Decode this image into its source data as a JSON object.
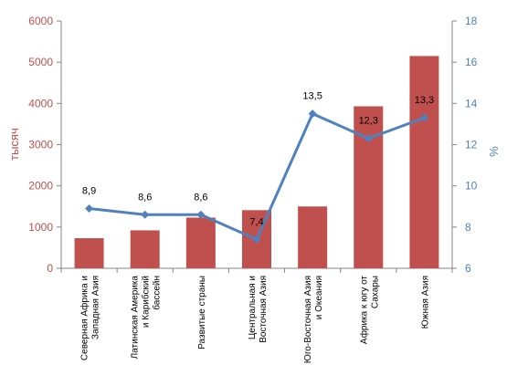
{
  "chart_data": {
    "type": "bar",
    "title": "",
    "categories": [
      [
        "Северная Африка и",
        "Западная Азия"
      ],
      [
        "Латинская Америка",
        "и Карибский",
        "бассейн"
      ],
      [
        "Развитые страны"
      ],
      [
        "Центральная и",
        "Восточная Азия"
      ],
      [
        "Юго-Восточная Азия",
        "и Океания"
      ],
      [
        "Африка к югу от",
        "Сахары"
      ],
      [
        "Южная Азия"
      ]
    ],
    "series": [
      {
        "kind": "bar",
        "axis": "left",
        "values": [
          730,
          920,
          1230,
          1410,
          1500,
          3930,
          5150
        ],
        "color": "#c0504d"
      },
      {
        "kind": "line",
        "axis": "right",
        "values": [
          8.9,
          8.6,
          8.6,
          7.4,
          13.5,
          12.3,
          13.3
        ],
        "labels": [
          "8,9",
          "8,6",
          "8,6",
          "7,4",
          "13,5",
          "12,3",
          "13,3"
        ],
        "color": "#4f81bd"
      }
    ],
    "ylabel_left": "тысяч",
    "ylabel_right": "%",
    "ylim_left": [
      0,
      6000
    ],
    "ylim_right": [
      6,
      18
    ],
    "yticks_left": [
      "0",
      "1000",
      "2000",
      "3000",
      "4000",
      "5000",
      "6000"
    ],
    "yticks_right": [
      "6",
      "8",
      "10",
      "12",
      "14",
      "16",
      "18"
    ],
    "grid": false,
    "legend": "none"
  }
}
